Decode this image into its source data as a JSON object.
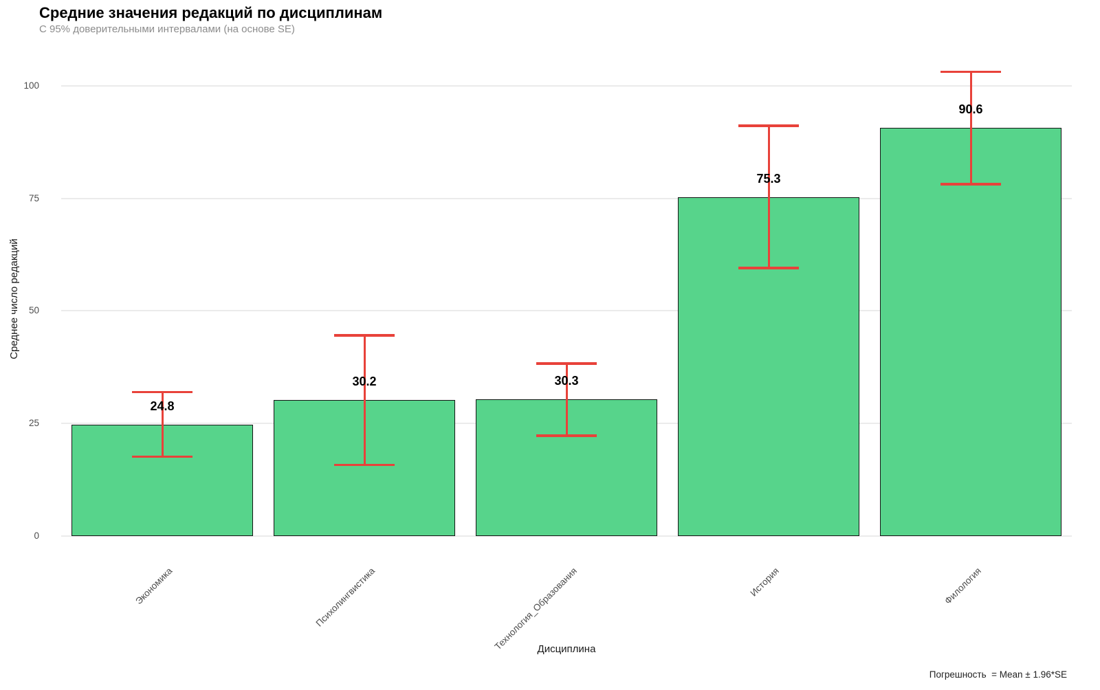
{
  "chart_data": {
    "type": "bar",
    "title": "Средние значения редакций по дисциплинам",
    "subtitle": "С 95% доверительными интервалами (на основе SE)",
    "xlabel": "Дисциплина",
    "ylabel": "Среднее число редакций",
    "caption": "Погрешность  = Mean ± 1.96*SE",
    "categories": [
      "Экономика",
      "Психолингвистика",
      "Технология_Образования",
      "История",
      "Филология"
    ],
    "values": [
      24.8,
      30.2,
      30.3,
      75.3,
      90.6
    ],
    "value_labels": [
      "24.8",
      "30.2",
      "30.3",
      "75.3",
      "90.6"
    ],
    "error_low": [
      17.6,
      15.8,
      22.3,
      59.5,
      78.1
    ],
    "error_high": [
      32.0,
      44.6,
      38.3,
      91.1,
      103.1
    ],
    "yticks": [
      0,
      25,
      50,
      75,
      100
    ],
    "ylim": [
      0,
      105.3
    ],
    "bar_width_fraction": 0.9,
    "legend_position": "none",
    "grid": "major-horizontal",
    "colors": {
      "bar_fill": "#57d48b",
      "bar_stroke": "#151515",
      "error_bar": "#e8423a",
      "gridline": "#ebebeb",
      "axis_text": "#4d4d4d",
      "title_text": "#000000",
      "subtitle_text": "#8c8c8c"
    }
  }
}
